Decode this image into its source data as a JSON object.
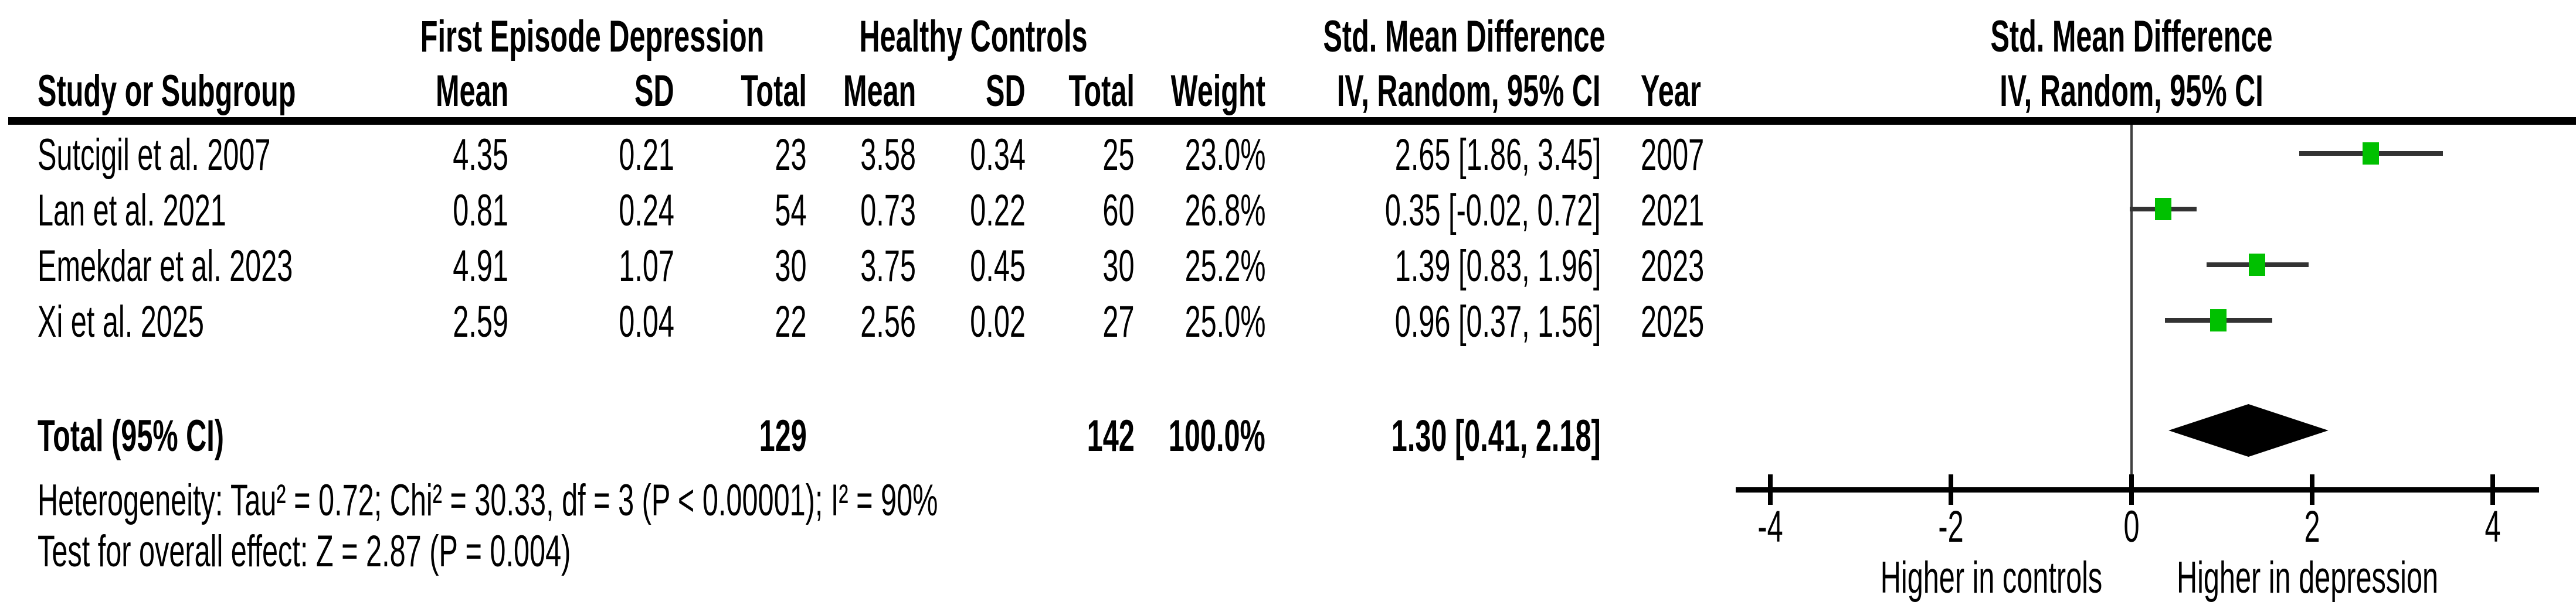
{
  "header": {
    "study": "Study or Subgroup",
    "group1": "First Episode Depression",
    "group2": "Healthy Controls",
    "smd_col": "Std. Mean Difference",
    "mean": "Mean",
    "sd": "SD",
    "total": "Total",
    "weight": "Weight",
    "iv_random": "IV, Random, 95% CI",
    "year": "Year",
    "plot_title": "Std. Mean Difference",
    "plot_subtitle": "IV, Random, 95% CI"
  },
  "rows": [
    {
      "study": "Sutcigil et al. 2007",
      "mean1": "4.35",
      "sd1": "0.21",
      "total1": "23",
      "mean2": "3.58",
      "sd2": "0.34",
      "total2": "25",
      "weight": "23.0%",
      "smd": "2.65 [1.86, 3.45]",
      "year": "2007"
    },
    {
      "study": "Lan et al. 2021",
      "mean1": "0.81",
      "sd1": "0.24",
      "total1": "54",
      "mean2": "0.73",
      "sd2": "0.22",
      "total2": "60",
      "weight": "26.8%",
      "smd": "0.35 [-0.02, 0.72]",
      "year": "2021"
    },
    {
      "study": "Emekdar et al. 2023",
      "mean1": "4.91",
      "sd1": "1.07",
      "total1": "30",
      "mean2": "3.75",
      "sd2": "0.45",
      "total2": "30",
      "weight": "25.2%",
      "smd": "1.39 [0.83, 1.96]",
      "year": "2023"
    },
    {
      "study": "Xi et al. 2025",
      "mean1": "2.59",
      "sd1": "0.04",
      "total1": "22",
      "mean2": "2.56",
      "sd2": "0.02",
      "total2": "27",
      "weight": "25.0%",
      "smd": "0.96 [0.37, 1.56]",
      "year": "2025"
    }
  ],
  "total_row": {
    "label": "Total (95% CI)",
    "total1": "129",
    "total2": "142",
    "weight": "100.0%",
    "smd": "1.30 [0.41, 2.18]"
  },
  "footer": {
    "heterogeneity": "Heterogeneity: Tau² = 0.72; Chi² = 30.33, df = 3 (P < 0.00001); I² = 90%",
    "overall_effect": "Test for overall effect: Z = 2.87 (P = 0.004)"
  },
  "chart_data": {
    "type": "forest",
    "effect_measure": "Std. Mean Difference, IV, Random, 95% CI",
    "studies": [
      {
        "name": "Sutcigil et al. 2007",
        "est": 2.65,
        "lo": 1.86,
        "hi": 3.45,
        "weight_pct": 23.0,
        "year": 2007
      },
      {
        "name": "Lan et al. 2021",
        "est": 0.35,
        "lo": -0.02,
        "hi": 0.72,
        "weight_pct": 26.8,
        "year": 2021
      },
      {
        "name": "Emekdar et al. 2023",
        "est": 1.39,
        "lo": 0.83,
        "hi": 1.96,
        "weight_pct": 25.2,
        "year": 2023
      },
      {
        "name": "Xi et al. 2025",
        "est": 0.96,
        "lo": 0.37,
        "hi": 1.56,
        "weight_pct": 25.0,
        "year": 2025
      }
    ],
    "total": {
      "label": "Total (95% CI)",
      "est": 1.3,
      "lo": 0.41,
      "hi": 2.18,
      "n_depression": 129,
      "n_controls": 142
    },
    "axis": {
      "min": -4,
      "max": 4,
      "ticks": [
        {
          "value": -4,
          "label": "-4"
        },
        {
          "value": -2,
          "label": "-2"
        },
        {
          "value": 0,
          "label": "0"
        },
        {
          "value": 2,
          "label": "2"
        },
        {
          "value": 4,
          "label": "4"
        }
      ]
    },
    "xlabel_left": "Higher in controls",
    "xlabel_right": "Higher in depression",
    "marker_color": "#00c000",
    "ci_color": "#333333",
    "diamond_color": "#000000"
  }
}
